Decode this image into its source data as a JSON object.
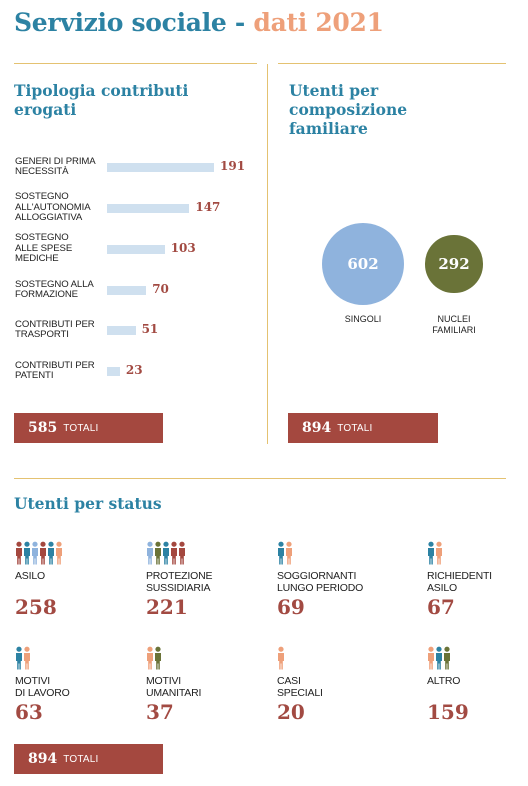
{
  "page": {
    "title_main": "Servizio sociale",
    "title_dash": "-",
    "title_year": "dati 2021"
  },
  "colors": {
    "blue": "#2c82a3",
    "orange": "#eea07a",
    "red": "#a4483f",
    "olive": "#6a7338",
    "light_blue": "#cfe0ef",
    "bubble_blue": "#8fb3dd",
    "gold": "#e4c271"
  },
  "left_section": {
    "heading": "Tipologia contributi erogati"
  },
  "right_section": {
    "heading": "Utenti per composizione familiare"
  },
  "status_section": {
    "heading": "Utenti per status"
  },
  "totals": {
    "left": {
      "number": "585",
      "label": "TOTALI"
    },
    "right": {
      "number": "894",
      "label": "TOTALI"
    },
    "status": {
      "number": "894",
      "label": "TOTALI"
    }
  },
  "chart_data": [
    {
      "type": "bar",
      "orientation": "horizontal",
      "title": "Tipologia contributi erogati",
      "categories": [
        "GENERI DI PRIMA NECESSITÀ",
        "SOSTEGNO ALL'AUTONOMIA ALLOGGIATIVA",
        "SOSTEGNO ALLE SPESE MEDICHE",
        "SOSTEGNO ALLA FORMAZIONE",
        "CONTRIBUTI PER TRASPORTI",
        "CONTRIBUTI PER PATENTI"
      ],
      "category_lines": [
        [
          "GENERI DI PRIMA",
          "NECESSITÀ"
        ],
        [
          "SOSTEGNO",
          "ALL'AUTONOMIA",
          "ALLOGGIATIVA"
        ],
        [
          "SOSTEGNO",
          "ALLE SPESE",
          "MEDICHE"
        ],
        [
          "SOSTEGNO ALLA",
          "FORMAZIONE"
        ],
        [
          "CONTRIBUTI PER",
          "TRASPORTI"
        ],
        [
          "CONTRIBUTI PER",
          "PATENTI"
        ]
      ],
      "values": [
        191,
        147,
        103,
        70,
        51,
        23
      ],
      "total": 585
    },
    {
      "type": "bubble",
      "title": "Utenti per composizione familiare",
      "categories": [
        "SINGOLI",
        "NUCLEI FAMILIARI"
      ],
      "category_lines": [
        [
          "SINGOLI"
        ],
        [
          "NUCLEI",
          "FAMILIARI"
        ]
      ],
      "values": [
        602,
        292
      ],
      "colors": [
        "#8fb3dd",
        "#6a7338"
      ],
      "total": 894
    },
    {
      "type": "table",
      "title": "Utenti per status",
      "categories": [
        "ASILO",
        "PROTEZIONE SUSSIDIARIA",
        "SOGGIORNANTI LUNGO PERIODO",
        "RICHIEDENTI ASILO",
        "MOTIVI DI LAVORO",
        "MOTIVI UMANITARI",
        "CASI SPECIALI",
        "ALTRO"
      ],
      "category_lines": [
        [
          "ASILO"
        ],
        [
          "PROTEZIONE",
          "SUSSIDIARIA"
        ],
        [
          "SOGGIORNANTI",
          "LUNGO PERIODO"
        ],
        [
          "RICHIEDENTI",
          "ASILO"
        ],
        [
          "MOTIVI",
          "DI LAVORO"
        ],
        [
          "MOTIVI",
          "UMANITARI"
        ],
        [
          "CASI",
          "SPECIALI"
        ],
        [
          "ALTRO"
        ]
      ],
      "values": [
        258,
        221,
        69,
        67,
        63,
        37,
        20,
        159
      ],
      "icons": [
        [
          "#a4483f",
          "#2c82a3",
          "#8fb3dd",
          "#a4483f",
          "#2c82a3",
          "#eea07a"
        ],
        [
          "#8fb3dd",
          "#6a7338",
          "#2c82a3",
          "#a4483f",
          "#a4483f"
        ],
        [
          "#2c82a3",
          "#eea07a"
        ],
        [
          "#2c82a3",
          "#eea07a"
        ],
        [
          "#2c82a3",
          "#eea07a"
        ],
        [
          "#eea07a",
          "#6a7338"
        ],
        [
          "#eea07a"
        ],
        [
          "#eea07a",
          "#2c82a3",
          "#6a7338"
        ]
      ],
      "icon_names": [
        "people-group-icon",
        "people-group-icon",
        "person-pair-icon",
        "person-pair-icon",
        "person-pair-icon",
        "person-pair-icon",
        "person-icon",
        "people-group-icon"
      ],
      "total": 894
    }
  ]
}
